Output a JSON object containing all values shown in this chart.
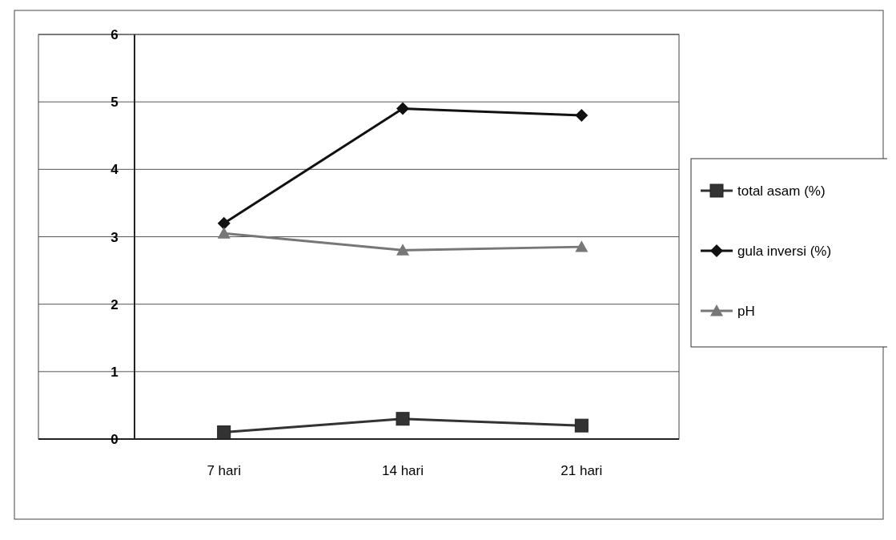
{
  "chart_data": {
    "type": "line",
    "categories": [
      "7 hari",
      "14 hari",
      "21 hari"
    ],
    "series": [
      {
        "name": "total asam (%)",
        "color": "#333333",
        "marker": "square",
        "values": [
          0.1,
          0.3,
          0.2
        ]
      },
      {
        "name": "gula inversi (%)",
        "color": "#111111",
        "marker": "diamond",
        "values": [
          3.2,
          4.9,
          4.8
        ]
      },
      {
        "name": "pH",
        "color": "#777777",
        "marker": "triangle",
        "values": [
          3.05,
          2.8,
          2.85
        ]
      }
    ],
    "ylim": [
      0,
      6
    ],
    "yticks": [
      0,
      1,
      2,
      3,
      4,
      5,
      6
    ],
    "grid": "y",
    "legend": "right"
  }
}
